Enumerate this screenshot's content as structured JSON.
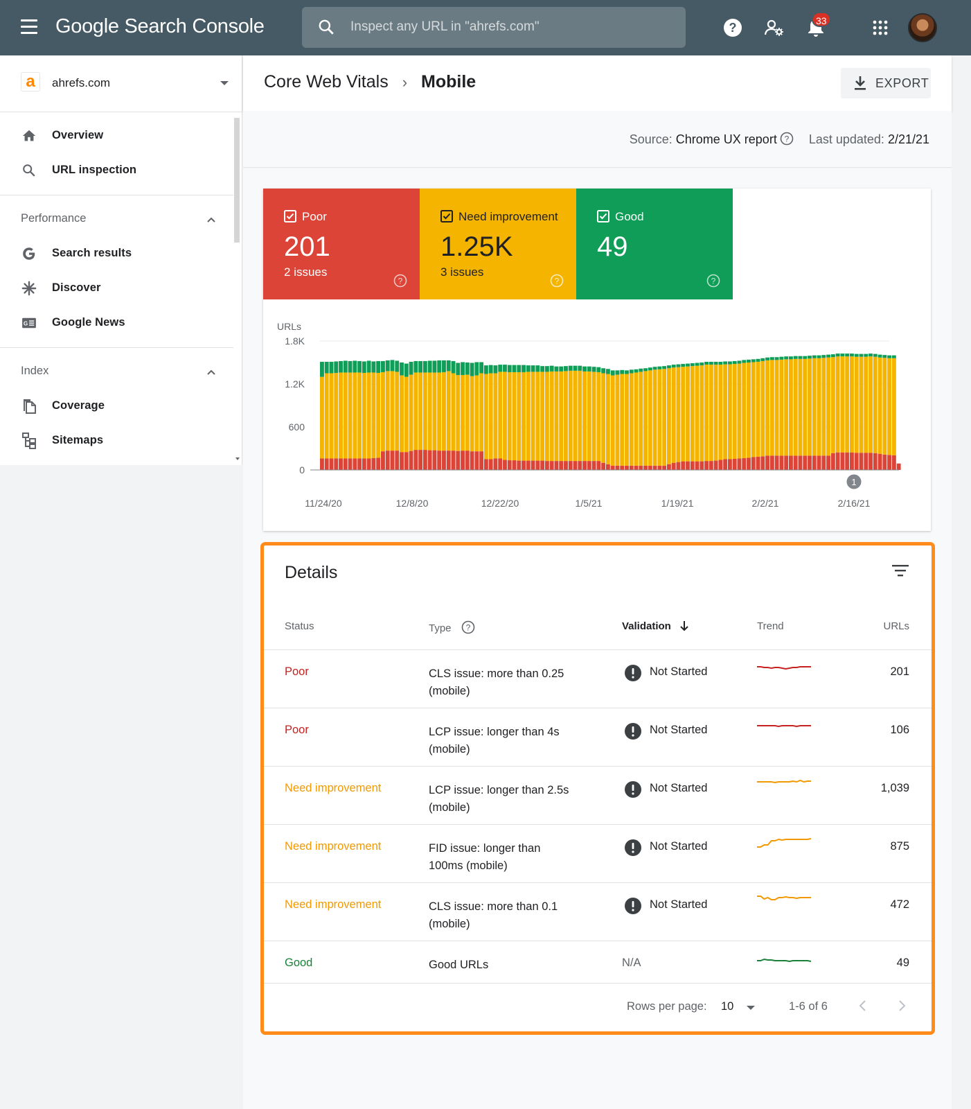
{
  "app": {
    "title": "Google Search Console",
    "search_placeholder": "Inspect any URL in \"ahrefs.com\"",
    "notification_count": "33",
    "icons": [
      "menu-icon",
      "search-icon",
      "help-icon",
      "manage-users-icon",
      "notifications-icon",
      "apps-icon",
      "avatar"
    ]
  },
  "sidebar": {
    "property": {
      "name": "ahrefs.com",
      "logo_letter": "a",
      "logo_color": "#ff8800"
    },
    "top_items": [
      {
        "label": "Overview",
        "icon": "home-icon"
      },
      {
        "label": "URL inspection",
        "icon": "search-icon"
      }
    ],
    "sections": [
      {
        "label": "Performance",
        "items": [
          {
            "label": "Search results",
            "icon": "google-g-icon"
          },
          {
            "label": "Discover",
            "icon": "asterisk-icon"
          },
          {
            "label": "Google News",
            "icon": "news-icon"
          }
        ]
      },
      {
        "label": "Index",
        "items": [
          {
            "label": "Coverage",
            "icon": "copy-pages-icon"
          },
          {
            "label": "Sitemaps",
            "icon": "sitemap-icon"
          }
        ]
      }
    ]
  },
  "header": {
    "breadcrumb_root": "Core Web Vitals",
    "breadcrumb_current": "Mobile",
    "export_label": "EXPORT"
  },
  "source": {
    "source_label": "Source:",
    "source_value": "Chrome UX report",
    "updated_label": "Last updated:",
    "updated_value": "2/21/21"
  },
  "summary": {
    "tiles": [
      {
        "label": "Poor",
        "value": "201",
        "sub": "2 issues",
        "color": "#db4437",
        "checked": true
      },
      {
        "label": "Need improvement",
        "value": "1.25K",
        "sub": "3 issues",
        "color": "#f4b400",
        "checked": true
      },
      {
        "label": "Good",
        "value": "49",
        "sub": "",
        "color": "#0f9d58",
        "checked": true
      }
    ]
  },
  "chart_data": {
    "type": "bar",
    "stacked": true,
    "ylabel": "URLs",
    "yticks": [
      "0",
      "600",
      "1.2K",
      "1.8K"
    ],
    "ylim": [
      0,
      1800
    ],
    "xticks": [
      "11/24/20",
      "12/8/20",
      "12/22/20",
      "1/5/21",
      "1/19/21",
      "2/2/21",
      "2/16/21"
    ],
    "annotation": {
      "label": "1",
      "at_date": "2/16/21"
    },
    "series": [
      {
        "name": "Poor",
        "color": "#db4437",
        "values": [
          160,
          160,
          160,
          160,
          160,
          160,
          160,
          160,
          160,
          160,
          160,
          165,
          170,
          260,
          270,
          270,
          270,
          250,
          250,
          265,
          280,
          280,
          280,
          275,
          275,
          270,
          270,
          270,
          270,
          265,
          270,
          270,
          260,
          260,
          260,
          150,
          150,
          160,
          160,
          140,
          135,
          135,
          130,
          130,
          130,
          130,
          130,
          130,
          125,
          125,
          125,
          125,
          125,
          125,
          125,
          125,
          125,
          125,
          125,
          125,
          100,
          80,
          60,
          60,
          60,
          60,
          60,
          60,
          60,
          60,
          60,
          60,
          60,
          60,
          80,
          100,
          110,
          120,
          120,
          120,
          120,
          120,
          125,
          125,
          130,
          140,
          150,
          150,
          155,
          160,
          165,
          170,
          180,
          185,
          190,
          200,
          200,
          200,
          200,
          200,
          200,
          200,
          200,
          200,
          200,
          200,
          200,
          200,
          200,
          235,
          245,
          245,
          245,
          245,
          240,
          240,
          240,
          240,
          235,
          225,
          215,
          210,
          205,
          90
        ]
      },
      {
        "name": "Need improvement",
        "color": "#f4b400",
        "values": [
          1140,
          1190,
          1190,
          1195,
          1200,
          1200,
          1200,
          1200,
          1200,
          1195,
          1200,
          1195,
          1185,
          1105,
          1110,
          1110,
          1100,
          1070,
          1050,
          1065,
          1080,
          1080,
          1080,
          1085,
          1085,
          1090,
          1095,
          1110,
          1080,
          1060,
          1055,
          1060,
          1050,
          1060,
          1090,
          1190,
          1200,
          1190,
          1210,
          1230,
          1230,
          1230,
          1235,
          1235,
          1240,
          1240,
          1240,
          1240,
          1245,
          1250,
          1250,
          1250,
          1255,
          1260,
          1260,
          1260,
          1250,
          1250,
          1245,
          1240,
          1250,
          1260,
          1260,
          1270,
          1280,
          1280,
          1290,
          1300,
          1310,
          1320,
          1330,
          1340,
          1345,
          1350,
          1340,
          1330,
          1325,
          1320,
          1325,
          1330,
          1335,
          1340,
          1345,
          1345,
          1340,
          1330,
          1325,
          1325,
          1325,
          1325,
          1330,
          1330,
          1325,
          1325,
          1330,
          1330,
          1335,
          1335,
          1340,
          1345,
          1345,
          1350,
          1350,
          1350,
          1355,
          1360,
          1360,
          1365,
          1370,
          1340,
          1340,
          1340,
          1340,
          1340,
          1340,
          1340,
          1340,
          1345,
          1345,
          1345,
          1350,
          1350,
          1355,
          0
        ]
      },
      {
        "name": "Good",
        "color": "#0f9d58",
        "values": [
          210,
          160,
          160,
          160,
          160,
          165,
          160,
          165,
          160,
          160,
          165,
          155,
          165,
          155,
          150,
          155,
          155,
          180,
          185,
          180,
          160,
          160,
          160,
          165,
          165,
          170,
          165,
          150,
          170,
          170,
          180,
          170,
          185,
          185,
          155,
          120,
          115,
          110,
          100,
          100,
          100,
          100,
          100,
          100,
          90,
          90,
          90,
          80,
          80,
          80,
          70,
          70,
          70,
          70,
          70,
          70,
          70,
          70,
          70,
          70,
          70,
          70,
          70,
          60,
          55,
          50,
          50,
          45,
          45,
          40,
          40,
          40,
          40,
          40,
          40,
          40,
          40,
          40,
          40,
          40,
          40,
          40,
          40,
          40,
          40,
          40,
          40,
          40,
          40,
          40,
          40,
          40,
          40,
          40,
          40,
          40,
          40,
          40,
          40,
          40,
          40,
          40,
          40,
          40,
          40,
          40,
          40,
          40,
          40,
          40,
          40,
          40,
          40,
          40,
          40,
          40,
          40,
          40,
          40,
          40,
          40,
          40,
          40,
          0
        ]
      }
    ]
  },
  "details": {
    "title": "Details",
    "columns": {
      "status": "Status",
      "type": "Type",
      "validation": "Validation",
      "trend": "Trend",
      "urls": "URLs"
    },
    "rows": [
      {
        "status": "Poor",
        "status_color": "#c5221f",
        "type_line1": "CLS issue: more than 0.25",
        "type_line2": "(mobile)",
        "validation": "Not Started",
        "trend_color": "#c5221f",
        "urls": "201"
      },
      {
        "status": "Poor",
        "status_color": "#c5221f",
        "type_line1": "LCP issue: longer than 4s",
        "type_line2": "(mobile)",
        "validation": "Not Started",
        "trend_color": "#c5221f",
        "urls": "106"
      },
      {
        "status": "Need improvement",
        "status_color": "#f29900",
        "type_line1": "LCP issue: longer than 2.5s",
        "type_line2": "(mobile)",
        "validation": "Not Started",
        "trend_color": "#f29900",
        "urls": "1,039"
      },
      {
        "status": "Need improvement",
        "status_color": "#f29900",
        "type_line1": "FID issue: longer than",
        "type_line2": "100ms (mobile)",
        "validation": "Not Started",
        "trend_color": "#f29900",
        "urls": "875"
      },
      {
        "status": "Need improvement",
        "status_color": "#f29900",
        "type_line1": "CLS issue: more than 0.1",
        "type_line2": "(mobile)",
        "validation": "Not Started",
        "trend_color": "#f29900",
        "urls": "472"
      },
      {
        "status": "Good",
        "status_color": "#188038",
        "type_line1": "Good URLs",
        "type_line2": "",
        "validation": "N/A",
        "trend_color": "#188038",
        "urls": "49"
      }
    ],
    "pagination": {
      "rows_per_page_label": "Rows per page:",
      "rows_per_page_value": "10",
      "range": "1-6 of 6"
    }
  }
}
